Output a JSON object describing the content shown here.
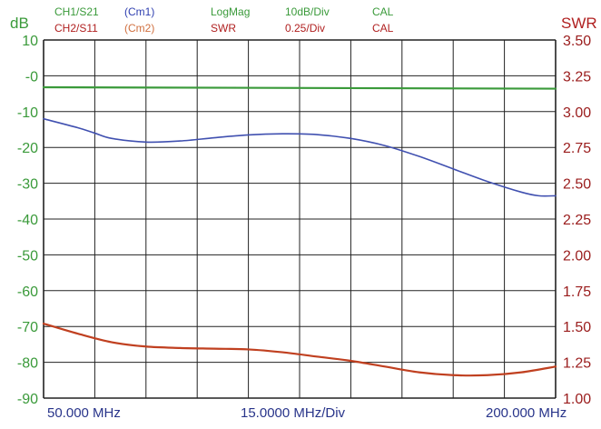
{
  "header": {
    "row1": [
      {
        "key": "ch1",
        "text": "CH1/S21",
        "color": "green"
      },
      {
        "key": "cm1",
        "text": "(Cm1)",
        "color": "blue"
      },
      {
        "key": "fmt1",
        "text": "LogMag",
        "color": "green"
      },
      {
        "key": "scale1",
        "text": "10dB/Div",
        "color": "green"
      },
      {
        "key": "cal1",
        "text": "CAL",
        "color": "green"
      }
    ],
    "row2": [
      {
        "key": "ch2",
        "text": "CH2/S11",
        "color": "red"
      },
      {
        "key": "cm2",
        "text": "(Cm2)",
        "color": "orange"
      },
      {
        "key": "fmt2",
        "text": "SWR",
        "color": "red"
      },
      {
        "key": "scale2",
        "text": "0.25/Div",
        "color": "red"
      },
      {
        "key": "cal2",
        "text": "CAL",
        "color": "red"
      }
    ]
  },
  "left_unit": "dB",
  "right_unit": "SWR",
  "x_labels": {
    "start": "50.000 MHz",
    "center": "15.0000 MHz/Div",
    "stop": "200.000 MHz"
  },
  "colors": {
    "grid": "#222222",
    "s21_trace": "#4050b0",
    "swr_trace": "#c04020",
    "left_axis": "#3a9a3a",
    "right_axis": "#9a1c1c",
    "x_axis": "#28348a"
  },
  "chart_data": {
    "type": "line",
    "x": [
      50,
      65,
      80,
      95,
      110,
      125,
      140,
      155,
      170,
      185,
      200
    ],
    "xlim": [
      50,
      200
    ],
    "xlabel": "15.0000 MHz/Div",
    "y_left": {
      "label": "dB",
      "ylim": [
        -90,
        10
      ],
      "ticks": [
        "10",
        "-0",
        "-10",
        "-20",
        "-30",
        "-40",
        "-50",
        "-60",
        "-70",
        "-80",
        "-90"
      ]
    },
    "y_right": {
      "label": "SWR",
      "ylim": [
        1.0,
        3.5
      ],
      "ticks": [
        "3.50",
        "3.25",
        "3.00",
        "2.75",
        "2.50",
        "2.25",
        "2.00",
        "1.75",
        "1.50",
        "1.25",
        "1.00"
      ]
    },
    "series": [
      {
        "name": "CH1/S21",
        "axis": "left",
        "x": [
          50,
          60,
          65,
          70,
          80,
          90,
          100,
          110,
          120,
          130,
          140,
          150,
          160,
          170,
          180,
          190,
          195,
          200
        ],
        "values": [
          -12,
          -14.5,
          -16,
          -17.5,
          -18.5,
          -18.2,
          -17.3,
          -16.5,
          -16.2,
          -16.4,
          -17.5,
          -19.5,
          -22.5,
          -26,
          -29.5,
          -32.5,
          -33.5,
          -33.5
        ]
      },
      {
        "name": "CH1/S21 ref",
        "axis": "left",
        "x": [
          50,
          200
        ],
        "values": [
          -3.2,
          -3.6
        ]
      },
      {
        "name": "CH2/S11",
        "axis": "right",
        "x": [
          50,
          60,
          70,
          80,
          90,
          100,
          110,
          120,
          130,
          140,
          150,
          160,
          170,
          180,
          190,
          200
        ],
        "values": [
          1.52,
          1.45,
          1.39,
          1.36,
          1.35,
          1.345,
          1.34,
          1.32,
          1.29,
          1.26,
          1.22,
          1.18,
          1.16,
          1.16,
          1.18,
          1.22
        ]
      }
    ]
  }
}
